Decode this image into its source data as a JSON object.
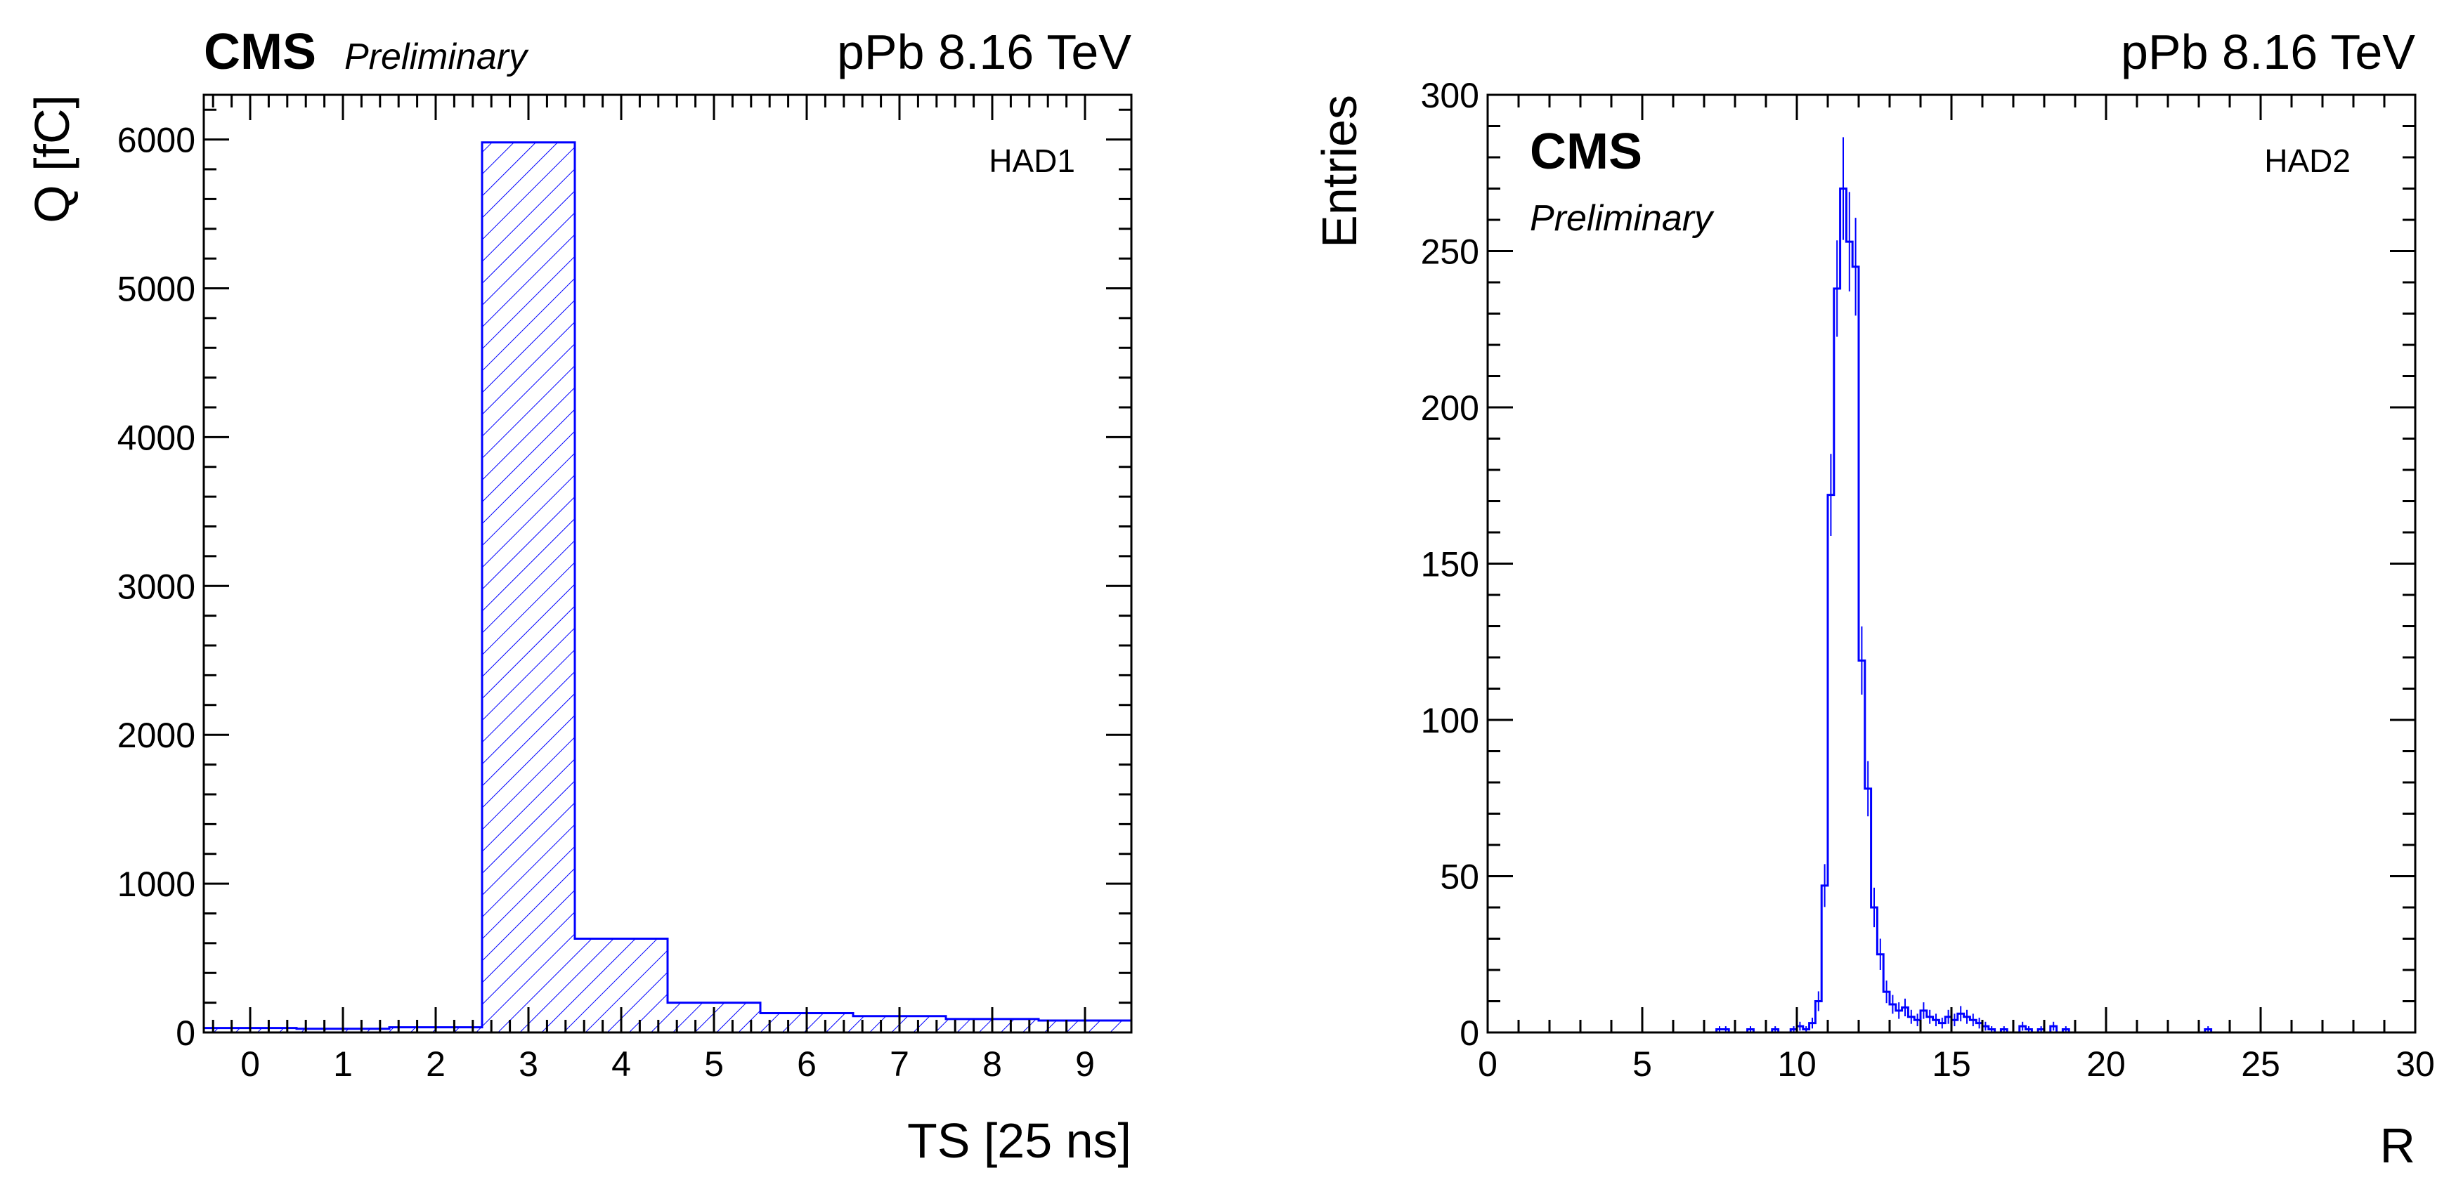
{
  "chart_data": [
    {
      "type": "bar",
      "style": "step histogram with diagonal hatch fill",
      "title": "pPb 8.16 TeV",
      "experiment": "CMS",
      "status": "Preliminary",
      "tag": "HAD1",
      "xlabel": "TS [25 ns]",
      "ylabel": "Q [fC]",
      "xlim": [
        -0.5,
        9.5
      ],
      "ylim": [
        0,
        6300
      ],
      "categories": [
        "0",
        "1",
        "2",
        "3",
        "4",
        "5",
        "6",
        "7",
        "8",
        "9"
      ],
      "values": [
        30,
        25,
        35,
        5980,
        630,
        200,
        130,
        110,
        90,
        80
      ],
      "xticks": [
        "0",
        "1",
        "2",
        "3",
        "4",
        "5",
        "6",
        "7",
        "8",
        "9"
      ],
      "yticks": [
        "0",
        "1000",
        "2000",
        "3000",
        "4000",
        "5000",
        "6000"
      ],
      "color": "#0000ff"
    },
    {
      "type": "bar",
      "style": "step histogram with error bars",
      "title": "pPb 8.16 TeV",
      "experiment": "CMS",
      "status": "Preliminary",
      "tag": "HAD2",
      "xlabel": "R",
      "ylabel": "Entries",
      "xlim": [
        0,
        30
      ],
      "ylim": [
        0,
        300
      ],
      "bin_width": 0.2,
      "bins": [
        {
          "x": 7.5,
          "y": 1
        },
        {
          "x": 7.7,
          "y": 1
        },
        {
          "x": 8.5,
          "y": 1
        },
        {
          "x": 9.3,
          "y": 1
        },
        {
          "x": 9.9,
          "y": 1
        },
        {
          "x": 10.1,
          "y": 2
        },
        {
          "x": 10.3,
          "y": 1
        },
        {
          "x": 10.5,
          "y": 3
        },
        {
          "x": 10.7,
          "y": 10
        },
        {
          "x": 10.9,
          "y": 47
        },
        {
          "x": 11.1,
          "y": 172
        },
        {
          "x": 11.3,
          "y": 238
        },
        {
          "x": 11.5,
          "y": 270
        },
        {
          "x": 11.7,
          "y": 253
        },
        {
          "x": 11.9,
          "y": 245
        },
        {
          "x": 12.1,
          "y": 119
        },
        {
          "x": 12.3,
          "y": 78
        },
        {
          "x": 12.5,
          "y": 40
        },
        {
          "x": 12.7,
          "y": 25
        },
        {
          "x": 12.9,
          "y": 13
        },
        {
          "x": 13.1,
          "y": 9
        },
        {
          "x": 13.3,
          "y": 7
        },
        {
          "x": 13.5,
          "y": 8
        },
        {
          "x": 13.7,
          "y": 5
        },
        {
          "x": 13.9,
          "y": 4
        },
        {
          "x": 14.1,
          "y": 7
        },
        {
          "x": 14.3,
          "y": 5
        },
        {
          "x": 14.5,
          "y": 4
        },
        {
          "x": 14.7,
          "y": 3
        },
        {
          "x": 14.9,
          "y": 5
        },
        {
          "x": 15.1,
          "y": 4
        },
        {
          "x": 15.3,
          "y": 6
        },
        {
          "x": 15.5,
          "y": 5
        },
        {
          "x": 15.7,
          "y": 4
        },
        {
          "x": 15.9,
          "y": 3
        },
        {
          "x": 16.1,
          "y": 2
        },
        {
          "x": 16.3,
          "y": 1
        },
        {
          "x": 16.7,
          "y": 1
        },
        {
          "x": 17.3,
          "y": 2
        },
        {
          "x": 17.5,
          "y": 1
        },
        {
          "x": 17.9,
          "y": 1
        },
        {
          "x": 18.3,
          "y": 2
        },
        {
          "x": 18.7,
          "y": 1
        },
        {
          "x": 23.3,
          "y": 1
        }
      ],
      "xticks": [
        "0",
        "5",
        "10",
        "15",
        "20",
        "25",
        "30"
      ],
      "yticks": [
        "0",
        "50",
        "100",
        "150",
        "200",
        "250",
        "300"
      ],
      "color": "#0000ff"
    }
  ]
}
